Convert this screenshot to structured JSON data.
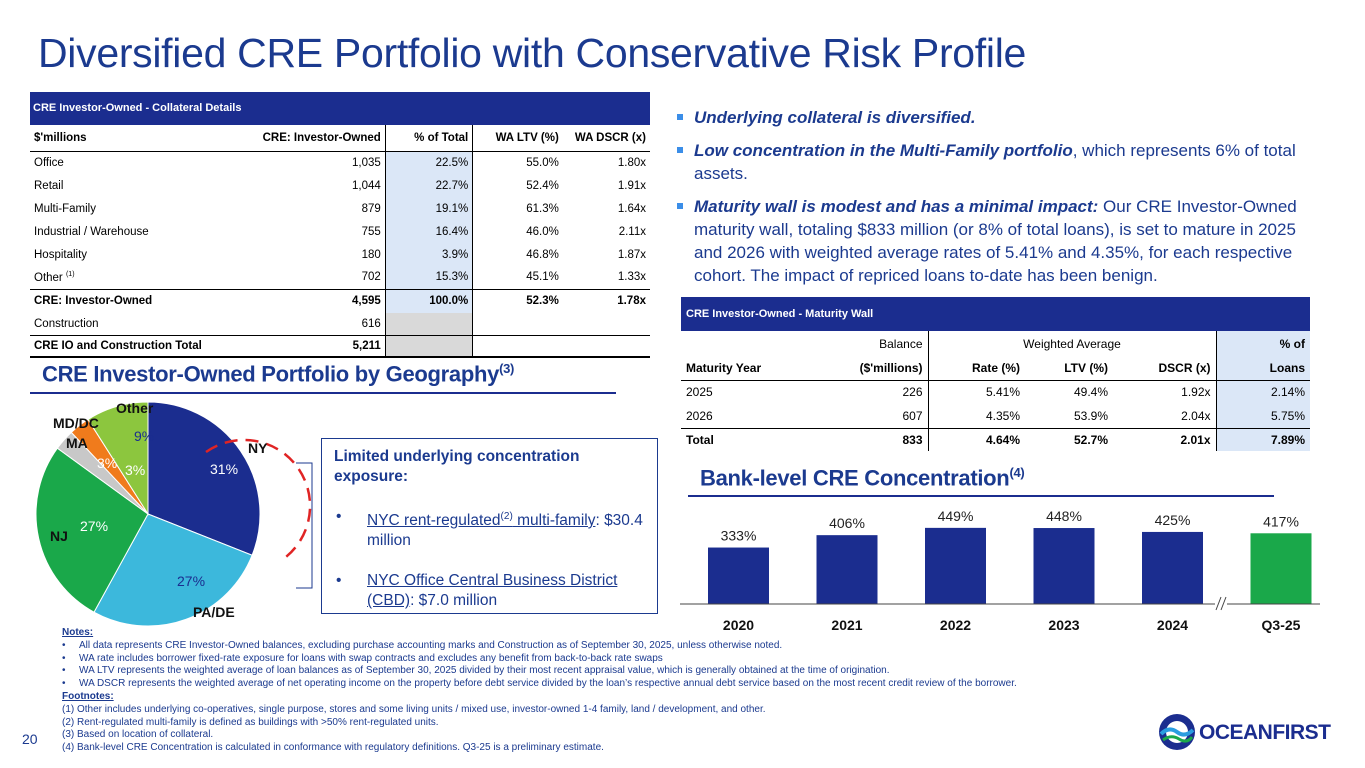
{
  "title": "Diversified CRE Portfolio with Conservative Risk Profile",
  "collateral": {
    "header": "CRE Investor-Owned - Collateral Details",
    "columns": [
      "$'millions",
      "CRE: Investor-Owned",
      "% of Total",
      "WA LTV (%)",
      "WA DSCR (x)"
    ],
    "rows": [
      {
        "name": "Office",
        "amount": "1,035",
        "pct": "22.5%",
        "ltv": "55.0%",
        "dscr": "1.80x"
      },
      {
        "name": "Retail",
        "amount": "1,044",
        "pct": "22.7%",
        "ltv": "52.4%",
        "dscr": "1.91x"
      },
      {
        "name": "Multi-Family",
        "amount": "879",
        "pct": "19.1%",
        "ltv": "61.3%",
        "dscr": "1.64x"
      },
      {
        "name": "Industrial / Warehouse",
        "amount": "755",
        "pct": "16.4%",
        "ltv": "46.0%",
        "dscr": "2.11x"
      },
      {
        "name": "Hospitality",
        "amount": "180",
        "pct": "3.9%",
        "ltv": "46.8%",
        "dscr": "1.87x"
      },
      {
        "name": "Other",
        "sup": "(1)",
        "amount": "702",
        "pct": "15.3%",
        "ltv": "45.1%",
        "dscr": "1.33x"
      }
    ],
    "total": {
      "name": "CRE: Investor-Owned",
      "amount": "4,595",
      "pct": "100.0%",
      "ltv": "52.3%",
      "dscr": "1.78x"
    },
    "construction": {
      "name": "Construction",
      "amount": "616"
    },
    "grand": {
      "name": "CRE IO and Construction Total",
      "amount": "5,211"
    }
  },
  "bullets": [
    {
      "bold": "Underlying collateral is diversified.",
      "rest": ""
    },
    {
      "bold": "Low concentration in the Multi-Family portfolio",
      "rest": ", which represents 6% of total assets."
    },
    {
      "bold": "Maturity wall is modest and has a minimal impact:",
      "rest": " Our CRE Investor-Owned maturity wall, totaling $833 million (or 8% of total loans), is set to mature in 2025 and 2026 with weighted average rates of 5.41% and 4.35%, for each respective cohort. The impact of repriced loans to-date has been benign."
    }
  ],
  "maturity": {
    "header": "CRE Investor-Owned - Maturity Wall",
    "head1": {
      "balance": "Balance",
      "wa": "Weighted Average",
      "pct": "% of"
    },
    "head2": {
      "year": "Maturity Year",
      "balance": "($'millions)",
      "rate": "Rate (%)",
      "ltv": "LTV (%)",
      "dscr": "DSCR (x)",
      "loans": "Loans"
    },
    "rows": [
      {
        "year": "2025",
        "balance": "226",
        "rate": "5.41%",
        "ltv": "49.4%",
        "dscr": "1.92x",
        "loans": "2.14%"
      },
      {
        "year": "2026",
        "balance": "607",
        "rate": "4.35%",
        "ltv": "53.9%",
        "dscr": "2.04x",
        "loans": "5.75%"
      }
    ],
    "total": {
      "year": "Total",
      "balance": "833",
      "rate": "4.64%",
      "ltv": "52.7%",
      "dscr": "2.01x",
      "loans": "7.89%"
    }
  },
  "geo": {
    "title": "CRE Investor-Owned Portfolio by Geography",
    "sup": "(3)",
    "labels": {
      "ny": "NY",
      "pa": "PA/DE",
      "nj": "NJ",
      "ma": "MA",
      "md": "MD/DC",
      "other": "Other"
    },
    "values": {
      "ny": "31%",
      "pa": "27%",
      "nj": "27%",
      "ma": "3%",
      "md": "3%",
      "other": "9%"
    }
  },
  "callout": {
    "title": "Limited underlying concentration exposure:",
    "item1": {
      "a": "NYC rent-regulated",
      "sup": "(2)",
      "b": " multi-family",
      "c": ": $30.4 million"
    },
    "item2": {
      "a": "NYC Office Central Business District (CBD)",
      "c": ": $7.0 million"
    }
  },
  "concentration": {
    "title": "Bank-level CRE Concentration",
    "sup": "(4)"
  },
  "chart_data": {
    "type": "bar",
    "title": "Bank-level CRE Concentration",
    "categories": [
      "2020",
      "2021",
      "2022",
      "2023",
      "2024",
      "Q3-25"
    ],
    "values": [
      333,
      406,
      449,
      448,
      425,
      417
    ],
    "labels": [
      "333%",
      "406%",
      "449%",
      "448%",
      "425%",
      "417%"
    ],
    "colors": [
      "#1b2d8f",
      "#1b2d8f",
      "#1b2d8f",
      "#1b2d8f",
      "#1b2d8f",
      "#1aa84a"
    ],
    "ylim": [
      0,
      460
    ],
    "xlabel": "",
    "ylabel": ""
  },
  "pie_data": {
    "type": "pie",
    "series": [
      {
        "name": "NY",
        "value": 31,
        "color": "#1b2d8f"
      },
      {
        "name": "PA/DE",
        "value": 27,
        "color": "#3cb8dc"
      },
      {
        "name": "NJ",
        "value": 27,
        "color": "#1aa84a"
      },
      {
        "name": "MA",
        "value": 3,
        "color": "#c8c8c8"
      },
      {
        "name": "MD/DC",
        "value": 3,
        "color": "#f07b1c"
      },
      {
        "name": "Other",
        "value": 9,
        "color": "#8cc63e"
      }
    ]
  },
  "notes": {
    "title": "Notes:",
    "items": [
      "All data represents CRE Investor-Owned balances, excluding purchase accounting marks and Construction as of September 30, 2025, unless otherwise noted.",
      "WA rate includes borrower fixed-rate exposure for loans with swap contracts and excludes any benefit from back-to-back rate swaps",
      "WA LTV represents the weighted average of loan balances as of September 30, 2025 divided by their most recent appraisal value, which is generally obtained at the time of origination.",
      "WA DSCR represents the weighted average of net operating income on the property before debt service divided by the loan’s respective annual debt service based on the most recent credit review of the borrower."
    ],
    "footnotes_title": "Footnotes:",
    "footnotes": [
      "(1) Other includes underlying co-operatives, single purpose, stores and some living units / mixed use, investor-owned 1-4 family, land / development, and other.",
      "(2) Rent-regulated multi-family is defined as buildings with >50% rent-regulated units.",
      "(3) Based on location of collateral.",
      "(4) Bank-level CRE Concentration is calculated in conformance with regulatory definitions. Q3-25 is a preliminary estimate."
    ]
  },
  "page_number": "20",
  "logo": {
    "text": "OCEANFIRST"
  }
}
